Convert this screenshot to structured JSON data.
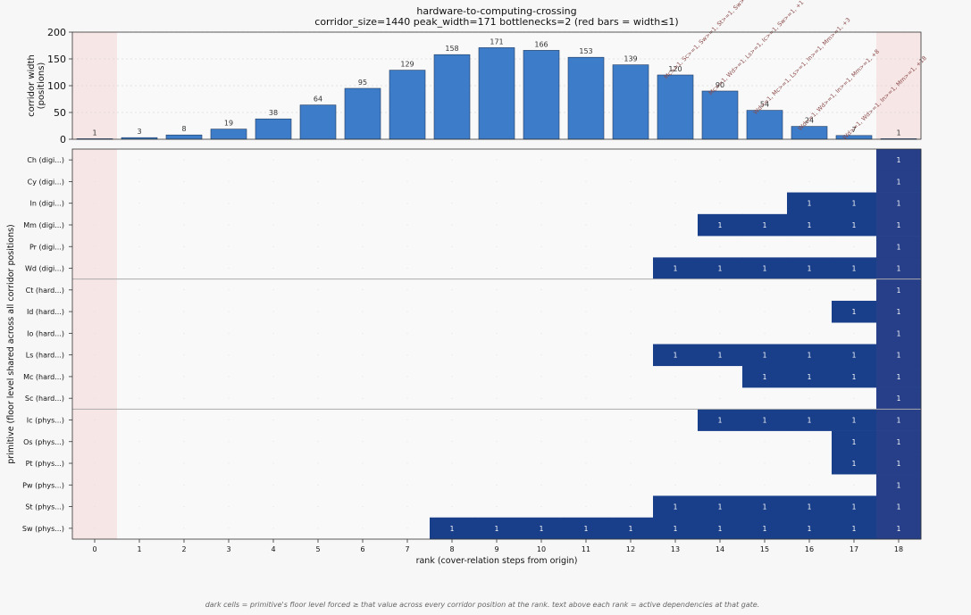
{
  "title": "hardware-to-computing-crossing",
  "subtitle": "corridor_size=1440  peak_width=171  bottlenecks=2  (red bars = width≤1)",
  "footnote": "dark cells = primitive's floor level forced ≥ that value across every corridor position at the rank.  text above each rank = active dependencies at that gate.",
  "chart_data": [
    {
      "type": "bar",
      "ylabel_lines": [
        "corridor width",
        "(positions)"
      ],
      "ylim": [
        0,
        200
      ],
      "yticks": [
        0,
        50,
        100,
        150,
        200
      ],
      "categories": [
        "0",
        "1",
        "2",
        "3",
        "4",
        "5",
        "6",
        "7",
        "8",
        "9",
        "10",
        "11",
        "12",
        "13",
        "14",
        "15",
        "16",
        "17",
        "18"
      ],
      "values": [
        1,
        3,
        8,
        19,
        38,
        64,
        95,
        129,
        158,
        171,
        166,
        153,
        139,
        120,
        90,
        54,
        24,
        7,
        1
      ],
      "annotations": [
        {
          "rank": 13,
          "text": "Mc>=1, Sc>=1, Sw>=1, St>=1, Sw>=1"
        },
        {
          "rank": 14,
          "text": "Mc>=1, Wd>=1, Ls>=1, Ic>=1, Sw>=1, +1"
        },
        {
          "rank": 15,
          "text": "Wd>=1, Mc>=1, Ls>=1, In>=1, Mm>=1, +3"
        },
        {
          "rank": 16,
          "text": "Wd>=1, Wd>=1, In>=1, Mm>=1, +8"
        },
        {
          "rank": 17,
          "text": "Wd>=1, Wd>=1, In>=1, Mm>=1, +18"
        }
      ],
      "grid": "y",
      "colors": {
        "bar": "#3d7cc9",
        "edge": "#1f3a5f",
        "bottleneck": "#f7e6e6"
      }
    },
    {
      "type": "heatmap",
      "xlabel": "rank (cover-relation steps from origin)",
      "ylabel": "primitive (floor level shared across all corridor positions)",
      "x_ticks": [
        "0",
        "1",
        "2",
        "3",
        "4",
        "5",
        "6",
        "7",
        "8",
        "9",
        "10",
        "11",
        "12",
        "13",
        "14",
        "15",
        "16",
        "17",
        "18"
      ],
      "rows": [
        {
          "label": "Ch  (digi...)",
          "start": 18
        },
        {
          "label": "Cy  (digi...)",
          "start": 18
        },
        {
          "label": "In  (digi...)",
          "start": 16
        },
        {
          "label": "Mm  (digi...)",
          "start": 14
        },
        {
          "label": "Pr  (digi...)",
          "start": 18
        },
        {
          "label": "Wd  (digi...)",
          "start": 13
        },
        {
          "label": "Ct  (hard...)",
          "start": 18
        },
        {
          "label": "Id  (hard...)",
          "start": 17
        },
        {
          "label": "Io  (hard...)",
          "start": 18
        },
        {
          "label": "Ls  (hard...)",
          "start": 13
        },
        {
          "label": "Mc  (hard...)",
          "start": 15
        },
        {
          "label": "Sc  (hard...)",
          "start": 18
        },
        {
          "label": "Ic  (phys...)",
          "start": 14
        },
        {
          "label": "Os  (phys...)",
          "start": 17
        },
        {
          "label": "Pt  (phys...)",
          "start": 17
        },
        {
          "label": "Pw  (phys...)",
          "start": 18
        },
        {
          "label": "St  (phys...)",
          "start": 13
        },
        {
          "label": "Sw  (phys...)",
          "start": 8
        }
      ],
      "cell_value": "1",
      "group_breaks_after_rows": [
        5,
        11
      ],
      "bottleneck_ranks": [
        0,
        18
      ],
      "colors": {
        "cell": "#1a3f8a",
        "final_column": "#263f88",
        "bottleneck": "#f7e6e6",
        "background": "#f9f9f9"
      }
    }
  ]
}
